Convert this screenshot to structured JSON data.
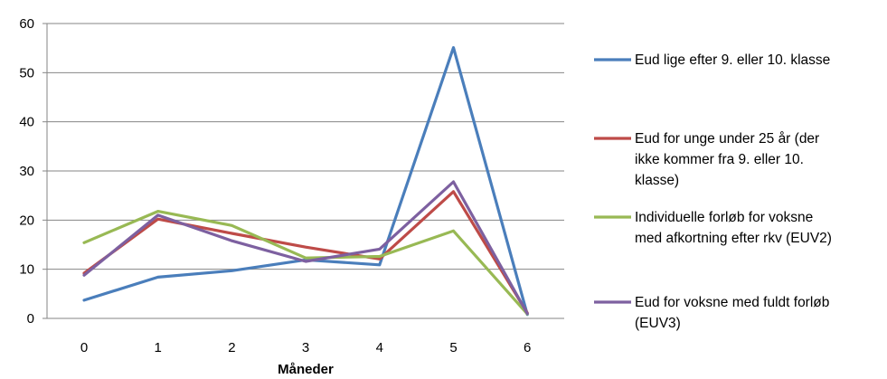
{
  "chart_data": {
    "type": "line",
    "title": "",
    "xlabel": "Måneder",
    "ylabel": "",
    "x": [
      0,
      1,
      2,
      3,
      4,
      5,
      6
    ],
    "x_tick_labels": [
      "0",
      "1",
      "2",
      "3",
      "4",
      "5",
      "6"
    ],
    "ylim": [
      0,
      60
    ],
    "y_ticks": [
      0,
      10,
      20,
      30,
      40,
      50,
      60
    ],
    "y_tick_labels": [
      "0",
      "10",
      "20",
      "30",
      "40",
      "50",
      "60"
    ],
    "grid": "horizontal",
    "legend_position": "right",
    "series": [
      {
        "name": "Eud lige efter 9. eller 10. klasse",
        "legend_lines": [
          "Eud lige efter 9. eller 10. klasse"
        ],
        "color": "#4A7EBB",
        "values": [
          3.7,
          8.4,
          9.7,
          11.9,
          10.9,
          55.1,
          0.8
        ]
      },
      {
        "name": "Eud for unge under 25 år (der ikke kommer fra 9. eller 10. klasse)",
        "legend_lines": [
          "Eud for unge under 25 år (der",
          "ikke kommer fra 9. eller 10.",
          "klasse)"
        ],
        "color": "#BE4B48",
        "values": [
          9.2,
          20.2,
          17.3,
          14.5,
          12.1,
          25.8,
          1.1
        ]
      },
      {
        "name": "Individuelle forløb for voksne med afkortning efter rkv (EUV2)",
        "legend_lines": [
          "Individuelle forløb for voksne",
          "med afkortning efter rkv (EUV2)"
        ],
        "color": "#98B954",
        "values": [
          15.4,
          21.8,
          18.9,
          12.3,
          12.6,
          17.8,
          0.9
        ]
      },
      {
        "name": "Eud for voksne med fuldt forløb (EUV3)",
        "legend_lines": [
          "Eud for voksne med fuldt forløb",
          "(EUV3)"
        ],
        "color": "#7D60A0",
        "values": [
          8.8,
          21.0,
          15.8,
          11.6,
          14.1,
          27.8,
          1.0
        ]
      }
    ]
  }
}
